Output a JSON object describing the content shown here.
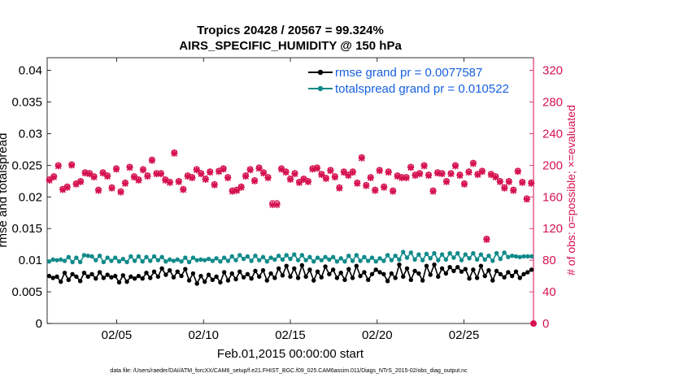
{
  "chart_data": {
    "type": "line",
    "title": "Tropics 20428 / 20567 = 99.324%",
    "subtitle": "AIRS_SPECIFIC_HUMIDITY @ 150 hPa",
    "xlabel": "Feb.01,2015 00:00:00 start",
    "ylabel": "rmse and totalspread",
    "ylabel_right": "# of obs: o=possible; ×=evaluated",
    "footnote": "data file: /Users/raeder/DAI/ATM_forcXX/CAM6_setup/f.e21.FHIST_BGC.f09_025.CAM6assim.011/Diags_NTrS_2015-02/obs_diag_output.nc",
    "xlim": [
      1,
      29
    ],
    "ylim": [
      0,
      0.042
    ],
    "ylim_right": [
      0,
      336
    ],
    "x_ticks": [
      5,
      10,
      15,
      20,
      25
    ],
    "x_tick_labels": [
      "02/05",
      "02/10",
      "02/15",
      "02/20",
      "02/25"
    ],
    "y_ticks": [
      0,
      0.005,
      0.01,
      0.015,
      0.02,
      0.025,
      0.03,
      0.035,
      0.04
    ],
    "y_tick_labels": [
      "0",
      "0.005",
      "0.01",
      "0.015",
      "0.02",
      "0.025",
      "0.03",
      "0.035",
      "0.04"
    ],
    "y_right_ticks": [
      0,
      40,
      80,
      120,
      160,
      200,
      240,
      280,
      320
    ],
    "y_right_tick_labels": [
      "0",
      "40",
      "80",
      "120",
      "160",
      "200",
      "240",
      "280",
      "320"
    ],
    "legend_position": "top-right",
    "series": [
      {
        "name": "rmse grand pr = 0.0077587",
        "axis": "left",
        "color": "#000000",
        "marker": "circle",
        "values": [
          0.0075,
          0.0072,
          0.0074,
          0.0066,
          0.008,
          0.0069,
          0.0078,
          0.0074,
          0.0067,
          0.008,
          0.0074,
          0.0078,
          0.0071,
          0.0081,
          0.0072,
          0.0077,
          0.0073,
          0.0075,
          0.0065,
          0.0076,
          0.0066,
          0.0074,
          0.0071,
          0.0075,
          0.0071,
          0.008,
          0.0072,
          0.0082,
          0.0074,
          0.0087,
          0.0077,
          0.0084,
          0.0073,
          0.0082,
          0.0075,
          0.0086,
          0.0068,
          0.0079,
          0.0063,
          0.0075,
          0.0066,
          0.0077,
          0.0069,
          0.0074,
          0.0065,
          0.0081,
          0.0068,
          0.0079,
          0.007,
          0.0082,
          0.0073,
          0.0078,
          0.0071,
          0.0083,
          0.0074,
          0.0084,
          0.0068,
          0.0079,
          0.0072,
          0.0087,
          0.0076,
          0.0091,
          0.0074,
          0.0087,
          0.0072,
          0.0092,
          0.0074,
          0.0085,
          0.0068,
          0.0082,
          0.0073,
          0.009,
          0.0078,
          0.0085,
          0.0072,
          0.008,
          0.0069,
          0.0086,
          0.0072,
          0.0091,
          0.0075,
          0.0081,
          0.0069,
          0.0078,
          0.0085,
          0.0081,
          0.0078,
          0.0067,
          0.0079,
          0.0072,
          0.0093,
          0.0074,
          0.0087,
          0.0069,
          0.0083,
          0.0079,
          0.0068,
          0.0091,
          0.0077,
          0.0093,
          0.0074,
          0.0087,
          0.0079,
          0.0089,
          0.0083,
          0.0089,
          0.0082,
          0.0086,
          0.0071,
          0.0085,
          0.0072,
          0.0091,
          0.0075,
          0.0084,
          0.0068,
          0.0083,
          0.0078,
          0.0073,
          0.0081,
          0.0075,
          0.0082,
          0.0072,
          0.0078,
          0.0081,
          0.0085
        ]
      },
      {
        "name": "totalspread grand pr = 0.010522",
        "axis": "left",
        "color": "#118a8a",
        "marker": "circle",
        "values": [
          0.0098,
          0.0101,
          0.01,
          0.0101,
          0.0099,
          0.0105,
          0.0097,
          0.0104,
          0.0097,
          0.0108,
          0.0107,
          0.0106,
          0.01,
          0.0107,
          0.0097,
          0.0104,
          0.0099,
          0.0104,
          0.0098,
          0.0102,
          0.0097,
          0.0106,
          0.0099,
          0.0106,
          0.0098,
          0.0105,
          0.0099,
          0.0106,
          0.01,
          0.0105,
          0.0098,
          0.0101,
          0.0099,
          0.0101,
          0.0098,
          0.0104,
          0.0097,
          0.0104,
          0.01,
          0.0101,
          0.01,
          0.0102,
          0.0099,
          0.0103,
          0.0098,
          0.0104,
          0.0099,
          0.0106,
          0.01,
          0.0108,
          0.0102,
          0.0106,
          0.0099,
          0.0107,
          0.01,
          0.0105,
          0.0098,
          0.0104,
          0.0101,
          0.0107,
          0.0101,
          0.0108,
          0.0102,
          0.0109,
          0.01,
          0.0108,
          0.01,
          0.0105,
          0.0098,
          0.0104,
          0.01,
          0.0105,
          0.0101,
          0.0105,
          0.0098,
          0.0103,
          0.0098,
          0.0107,
          0.0099,
          0.0108,
          0.0099,
          0.0105,
          0.0099,
          0.0104,
          0.0098,
          0.0103,
          0.0099,
          0.0108,
          0.01,
          0.0107,
          0.0101,
          0.0113,
          0.0104,
          0.0112,
          0.0101,
          0.0109,
          0.01,
          0.011,
          0.0103,
          0.0111,
          0.01,
          0.0109,
          0.0101,
          0.0111,
          0.0104,
          0.0111,
          0.01,
          0.0109,
          0.0103,
          0.0111,
          0.0101,
          0.0109,
          0.0101,
          0.0107,
          0.0099,
          0.0111,
          0.0102,
          0.0112,
          0.0105,
          0.0107,
          0.0106,
          0.0105,
          0.0106,
          0.0106,
          0.0106
        ]
      },
      {
        "name": "obs possible",
        "axis": "right",
        "color": "#d5124f",
        "marker": "o",
        "values": [
          182,
          186,
          200,
          170,
          173,
          201,
          177,
          180,
          191,
          190,
          186,
          169,
          191,
          187,
          172,
          196,
          167,
          178,
          198,
          186,
          182,
          195,
          187,
          207,
          190,
          190,
          182,
          179,
          216,
          180,
          170,
          187,
          185,
          195,
          190,
          183,
          192,
          176,
          193,
          196,
          185,
          168,
          169,
          173,
          187,
          195,
          181,
          197,
          191,
          185,
          152,
          152,
          196,
          192,
          183,
          190,
          179,
          183,
          180,
          196,
          197,
          189,
          184,
          194,
          186,
          172,
          192,
          188,
          192,
          178,
          210,
          175,
          185,
          169,
          194,
          173,
          192,
          168,
          187,
          185,
          185,
          198,
          188,
          190,
          200,
          188,
          168,
          191,
          190,
          180,
          190,
          200,
          188,
          177,
          192,
          203,
          189,
          193,
          107,
          189,
          186,
          180,
          172,
          180,
          169,
          193,
          179,
          158,
          178
        ]
      },
      {
        "name": "obs evaluated",
        "axis": "right",
        "color": "#d5124f",
        "marker": "x",
        "values": [
          181,
          185,
          199,
          169,
          172,
          200,
          176,
          179,
          190,
          189,
          185,
          168,
          190,
          186,
          171,
          195,
          166,
          177,
          197,
          185,
          181,
          194,
          186,
          206,
          189,
          189,
          181,
          178,
          215,
          179,
          169,
          186,
          184,
          194,
          189,
          182,
          191,
          175,
          192,
          195,
          184,
          167,
          168,
          172,
          186,
          194,
          180,
          196,
          190,
          184,
          150,
          150,
          195,
          191,
          182,
          189,
          178,
          182,
          179,
          195,
          196,
          188,
          183,
          193,
          185,
          171,
          191,
          187,
          191,
          177,
          209,
          174,
          184,
          168,
          193,
          172,
          191,
          167,
          186,
          184,
          184,
          197,
          187,
          189,
          199,
          187,
          167,
          190,
          189,
          179,
          189,
          199,
          187,
          176,
          191,
          202,
          188,
          192,
          106,
          188,
          185,
          179,
          171,
          179,
          168,
          192,
          178,
          157,
          177
        ]
      }
    ]
  }
}
